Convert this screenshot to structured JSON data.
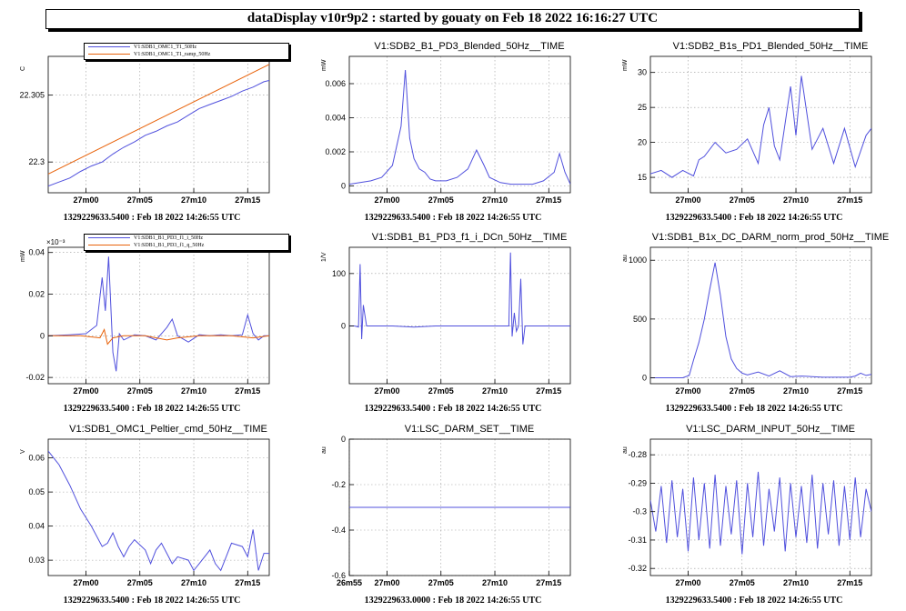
{
  "header": {
    "title": "dataDisplay v10r9p2 : started by gouaty on Feb 18 2022 16:16:27 UTC"
  },
  "colors": {
    "series_a": "#5050dd",
    "series_b": "#e8620a"
  },
  "chart_data": [
    {
      "type": "line",
      "title": "",
      "ylabel": "C",
      "footer": "1329229633.5400 : Feb 18 2022 14:26:55 UTC",
      "legend": [
        "V1:SDB1_OMC1_T1_50Hz",
        "V1:SDB1_OMC1_T1_ramp_50Hz"
      ],
      "x_ticks": [
        "27m00",
        "27m05",
        "27m10",
        "27m15"
      ],
      "xlim": [
        0,
        20.5
      ],
      "y_ticks": [
        22.3,
        22.305
      ],
      "y_tick_labels": [
        "22.3",
        "22.305"
      ],
      "ylim": [
        22.2977,
        22.3079
      ],
      "series": [
        {
          "name": "V1:SDB1_OMC1_T1_50Hz",
          "x": [
            0,
            1,
            2,
            3,
            4,
            5,
            6,
            7,
            8,
            9,
            10,
            11,
            12,
            13,
            14,
            15,
            16,
            17,
            18,
            19,
            20,
            20.5
          ],
          "y": [
            22.2982,
            22.2985,
            22.2988,
            22.2993,
            22.2997,
            22.3,
            22.3006,
            22.3011,
            22.3015,
            22.302,
            22.3023,
            22.3027,
            22.303,
            22.3035,
            22.304,
            22.3043,
            22.3046,
            22.3049,
            22.3053,
            22.3056,
            22.306,
            22.3061
          ]
        },
        {
          "name": "V1:SDB1_OMC1_T1_ramp_50Hz",
          "x": [
            0,
            20.5
          ],
          "y": [
            22.2991,
            22.3073
          ]
        }
      ]
    },
    {
      "type": "line",
      "title": "V1:SDB2_B1_PD3_Blended_50Hz__TIME",
      "ylabel": "mW",
      "footer": "1329229633.5400 : Feb 18 2022 14:26:55 UTC",
      "x_ticks": [
        "27m00",
        "27m05",
        "27m10",
        "27m15"
      ],
      "xlim": [
        0,
        20.5
      ],
      "y_ticks": [
        0,
        0.002,
        0.004,
        0.006
      ],
      "y_tick_labels": [
        "0",
        "0.002",
        "0.004",
        "0.006"
      ],
      "ylim": [
        -0.0004,
        0.0076
      ],
      "series": [
        {
          "name": "",
          "color_index": 0,
          "x": [
            0,
            1,
            2,
            3,
            4,
            4.8,
            5.2,
            5.6,
            6,
            6.5,
            7,
            7.5,
            8,
            9,
            10,
            11,
            11.8,
            12.5,
            13,
            14,
            15,
            16,
            17,
            18,
            19,
            19.5,
            20,
            20.5
          ],
          "y": [
            0.0001,
            0.0002,
            0.0003,
            0.0005,
            0.0012,
            0.0035,
            0.0068,
            0.0028,
            0.0016,
            0.001,
            0.0008,
            0.0004,
            0.0003,
            0.0003,
            0.0005,
            0.001,
            0.0021,
            0.0012,
            0.0005,
            0.0002,
            0.0001,
            0.0001,
            0.0001,
            0.0003,
            0.0008,
            0.0019,
            0.0008,
            0.0001
          ]
        }
      ]
    },
    {
      "type": "line",
      "title": "V1:SDB2_B1s_PD1_Blended_50Hz__TIME",
      "ylabel": "mW",
      "footer": "1329229633.5400 : Feb 18 2022 14:26:55 UTC",
      "x_ticks": [
        "27m00",
        "27m05",
        "27m10",
        "27m15"
      ],
      "xlim": [
        0,
        20.5
      ],
      "y_ticks": [
        15,
        20,
        25,
        30
      ],
      "y_tick_labels": [
        "15",
        "20",
        "25",
        "30"
      ],
      "ylim": [
        12.8,
        32.3
      ],
      "series": [
        {
          "name": "",
          "color_index": 0,
          "x": [
            0,
            1,
            2,
            3,
            4,
            4.5,
            5,
            6,
            7,
            8,
            9,
            10,
            10.5,
            11,
            11.5,
            12,
            13,
            13.5,
            14,
            15,
            16,
            17,
            18,
            19,
            20,
            20.5
          ],
          "y": [
            15.5,
            16.0,
            15.0,
            16.0,
            15.2,
            17.5,
            18.0,
            20.0,
            18.5,
            19.0,
            20.5,
            17.0,
            22.5,
            25.0,
            19.5,
            17.5,
            28.0,
            21.0,
            29.5,
            19.0,
            22.0,
            17.0,
            22.0,
            16.5,
            21.0,
            22.0
          ]
        }
      ]
    },
    {
      "type": "line",
      "title": "",
      "ylabel": "mW",
      "scale_label": "×10⁻³",
      "footer": "1329229633.5400 : Feb 18 2022 14:26:55 UTC",
      "legend": [
        "V1:SDB1_B1_PD3_f1_i_50Hz",
        "V1:SDB1_B1_PD3_f1_q_50Hz"
      ],
      "x_ticks": [
        "27m00",
        "27m05",
        "27m10",
        "27m15"
      ],
      "xlim": [
        0,
        20.5
      ],
      "y_ticks": [
        -0.02,
        0,
        0.02,
        0.04
      ],
      "y_tick_labels": [
        "-0.02",
        "0",
        "0.02",
        "0.04"
      ],
      "ylim": [
        -0.023,
        0.0425
      ],
      "series": [
        {
          "name": "V1:SDB1_B1_PD3_f1_i_50Hz",
          "x": [
            0,
            2,
            3.5,
            4.5,
            5,
            5.3,
            5.6,
            6,
            6.3,
            6.6,
            7,
            8,
            9,
            10,
            11,
            11.5,
            12,
            13,
            14,
            15,
            16,
            17,
            18,
            18.5,
            19,
            19.5,
            20,
            20.5
          ],
          "y": [
            0,
            0.0005,
            0.001,
            0.005,
            0.028,
            0.012,
            0.038,
            -0.008,
            -0.017,
            0.001,
            -0.002,
            0.0005,
            0,
            -0.002,
            0.004,
            0.008,
            0,
            -0.003,
            0.0005,
            0,
            0.0005,
            0,
            0.0005,
            0.01,
            0.001,
            -0.002,
            0,
            0
          ]
        },
        {
          "name": "V1:SDB1_B1_PD3_f1_q_50Hz",
          "x": [
            0,
            3,
            4.8,
            5.2,
            5.5,
            6,
            7,
            9,
            11,
            12,
            14,
            17,
            19,
            20.5
          ],
          "y": [
            0,
            0,
            -0.001,
            0.003,
            -0.004,
            -0.001,
            0,
            0,
            -0.002,
            -0.001,
            0,
            0,
            -0.001,
            0
          ]
        }
      ]
    },
    {
      "type": "line",
      "title": "V1:SDB1_B1_PD3_f1_i_DCn_50Hz__TIME",
      "ylabel": "1/V",
      "footer": "1329229633.5400 : Feb 18 2022 14:26:55 UTC",
      "x_ticks": [
        "27m00",
        "27m05",
        "27m10",
        "27m15"
      ],
      "xlim": [
        0,
        20.5
      ],
      "y_ticks": [
        0,
        100
      ],
      "y_tick_labels": [
        "0",
        "100"
      ],
      "ylim": [
        -110,
        150
      ],
      "series": [
        {
          "name": "",
          "color_index": 0,
          "x": [
            0,
            0.5,
            0.85,
            1.0,
            1.15,
            1.3,
            1.6,
            2,
            4,
            6,
            8,
            10,
            12,
            14,
            14.8,
            14.95,
            15.1,
            15.3,
            15.5,
            15.7,
            15.9,
            16.1,
            16.3,
            17,
            19,
            20.5
          ],
          "y": [
            0,
            0,
            -2,
            118,
            -25,
            40,
            0,
            0,
            0,
            -2,
            0,
            0,
            0,
            0,
            0,
            140,
            -20,
            25,
            -10,
            0,
            90,
            -35,
            0,
            0,
            0,
            0
          ]
        }
      ]
    },
    {
      "type": "line",
      "title": "V1:SDB1_B1x_DC_DARM_norm_prod_50Hz__TIME",
      "ylabel": "au",
      "footer": "1329229633.5400 : Feb 18 2022 14:26:55 UTC",
      "x_ticks": [
        "27m00",
        "27m05",
        "27m10",
        "27m15"
      ],
      "xlim": [
        0,
        20.5
      ],
      "y_ticks": [
        0,
        500,
        1000
      ],
      "y_tick_labels": [
        "0",
        "500",
        "1000"
      ],
      "ylim": [
        -50,
        1110
      ],
      "series": [
        {
          "name": "",
          "color_index": 0,
          "x": [
            0,
            3,
            3.6,
            4,
            4.5,
            5,
            5.5,
            6,
            6.5,
            7,
            7.5,
            8,
            8.5,
            9,
            10,
            11,
            12,
            13,
            14,
            15,
            16,
            17,
            18,
            18.5,
            19,
            19.5,
            20,
            20.5
          ],
          "y": [
            0,
            0,
            20,
            150,
            300,
            500,
            750,
            980,
            700,
            350,
            160,
            80,
            40,
            25,
            50,
            15,
            60,
            10,
            15,
            10,
            5,
            5,
            5,
            5,
            15,
            40,
            20,
            30
          ]
        }
      ]
    },
    {
      "type": "line",
      "title": "V1:SDB1_OMC1_Peltier_cmd_50Hz__TIME",
      "ylabel": "V",
      "footer": "1329229633.5400 : Feb 18 2022 14:26:55 UTC",
      "x_ticks": [
        "27m00",
        "27m05",
        "27m10",
        "27m15"
      ],
      "xlim": [
        0,
        20.5
      ],
      "y_ticks": [
        0.03,
        0.04,
        0.05,
        0.06
      ],
      "y_tick_labels": [
        "0.03",
        "0.04",
        "0.05",
        "0.06"
      ],
      "ylim": [
        0.0255,
        0.0655
      ],
      "series": [
        {
          "name": "",
          "color_index": 0,
          "x": [
            0,
            1,
            2,
            3,
            4,
            5,
            5.5,
            6,
            6.5,
            7,
            7.5,
            8,
            9,
            9.5,
            10,
            10.5,
            11,
            11.5,
            12,
            13,
            13.5,
            14,
            15,
            15.5,
            16,
            16.5,
            17,
            18,
            18.5,
            19,
            19.5,
            20,
            20.5
          ],
          "y": [
            0.062,
            0.058,
            0.052,
            0.045,
            0.04,
            0.034,
            0.035,
            0.038,
            0.034,
            0.031,
            0.034,
            0.036,
            0.033,
            0.029,
            0.033,
            0.035,
            0.032,
            0.029,
            0.031,
            0.03,
            0.027,
            0.029,
            0.033,
            0.029,
            0.027,
            0.031,
            0.035,
            0.034,
            0.031,
            0.039,
            0.027,
            0.032,
            0.032
          ]
        }
      ]
    },
    {
      "type": "line",
      "title": "V1:LSC_DARM_SET__TIME",
      "ylabel": "au",
      "footer": "1329229633.0000 : Feb 18 2022 14:26:55 UTC",
      "x_ticks": [
        "26m55",
        "27m00",
        "27m05",
        "27m10",
        "27m15"
      ],
      "xlim": [
        0,
        20.5
      ],
      "x_tick_pos": [
        0,
        3.5,
        8.5,
        13.5,
        18.5
      ],
      "y_ticks": [
        -0.6,
        -0.4,
        -0.2,
        0
      ],
      "y_tick_labels": [
        "-0.6",
        "-0.4",
        "-0.2",
        "0"
      ],
      "ylim": [
        -0.6,
        0
      ],
      "series": [
        {
          "name": "",
          "color_index": 0,
          "x": [
            0,
            20.5
          ],
          "y": [
            -0.3,
            -0.3
          ]
        }
      ]
    },
    {
      "type": "line",
      "title": "V1:LSC_DARM_INPUT_50Hz__TIME",
      "ylabel": "au",
      "footer": "1329229633.5400 : Feb 18 2022 14:26:55 UTC",
      "x_ticks": [
        "27m00",
        "27m05",
        "27m10",
        "27m15"
      ],
      "xlim": [
        0,
        20.5
      ],
      "y_ticks": [
        -0.32,
        -0.31,
        -0.3,
        -0.29,
        -0.28
      ],
      "y_tick_labels": [
        "-0.32",
        "-0.31",
        "-0.3",
        "-0.29",
        "-0.28"
      ],
      "ylim": [
        -0.3225,
        -0.2745
      ],
      "series": [
        {
          "name": "",
          "color_index": 0,
          "x": [
            0,
            0.5,
            1,
            1.5,
            2,
            2.5,
            3,
            3.5,
            4,
            4.5,
            5,
            5.5,
            6,
            6.5,
            7,
            7.5,
            8,
            8.5,
            9,
            9.5,
            10,
            10.5,
            11,
            11.5,
            12,
            12.5,
            13,
            13.5,
            14,
            14.5,
            15,
            15.5,
            16,
            16.5,
            17,
            17.5,
            18,
            18.5,
            19,
            19.5,
            20,
            20.5
          ],
          "y": [
            -0.296,
            -0.307,
            -0.291,
            -0.311,
            -0.289,
            -0.309,
            -0.292,
            -0.314,
            -0.288,
            -0.31,
            -0.29,
            -0.313,
            -0.287,
            -0.312,
            -0.291,
            -0.308,
            -0.289,
            -0.315,
            -0.29,
            -0.309,
            -0.286,
            -0.312,
            -0.292,
            -0.307,
            -0.288,
            -0.314,
            -0.29,
            -0.309,
            -0.291,
            -0.311,
            -0.287,
            -0.313,
            -0.29,
            -0.308,
            -0.289,
            -0.312,
            -0.291,
            -0.31,
            -0.288,
            -0.309,
            -0.292,
            -0.3
          ]
        }
      ]
    }
  ]
}
